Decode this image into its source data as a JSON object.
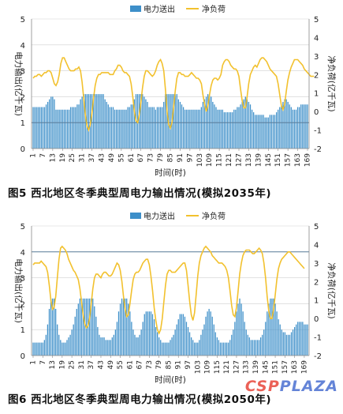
{
  "figures": [
    {
      "caption": "图5  西北地区冬季典型周电力输出情况(模拟2035年)"
    },
    {
      "caption": "图6  西北地区冬季典型周电力输出情况(模拟2050年)"
    }
  ],
  "watermark": {
    "main": "CSP",
    "sub": "PLAZA"
  },
  "colors": {
    "bars": "#3d8fc9",
    "line": "#f2c12e",
    "reference": "#5a7d9a",
    "grid": "#cfcfcf"
  },
  "chart_data": [
    {
      "type": "bar+line",
      "legend": [
        "电力送出",
        "净负荷"
      ],
      "legend_placement": "top-center",
      "xlabel": "时间(时)",
      "ylabel_left": "电力输出(亿千瓦)",
      "ylabel_right": "净负荷(亿千瓦)",
      "ylim_left": [
        0,
        5
      ],
      "ylim_right": [
        -2,
        5
      ],
      "yticks_left": [
        "0",
        "1",
        "2",
        "3",
        "4",
        "5"
      ],
      "yticks_right": [
        "-2",
        "-1",
        "0",
        "1",
        "2",
        "3",
        "4",
        "5"
      ],
      "xticks": [
        "1",
        "7",
        "13",
        "19",
        "25",
        "31",
        "37",
        "43",
        "49",
        "55",
        "61",
        "67",
        "73",
        "79",
        "85",
        "91",
        "97",
        "103",
        "109",
        "115",
        "121",
        "127",
        "133",
        "139",
        "145",
        "151",
        "157",
        "163",
        "169"
      ],
      "reference_line_left": 1.0,
      "bars": [
        1.6,
        1.6,
        1.6,
        1.6,
        1.6,
        1.6,
        1.6,
        1.6,
        1.7,
        1.8,
        1.9,
        2.0,
        2.0,
        1.9,
        1.5,
        1.5,
        1.5,
        1.5,
        1.5,
        1.5,
        1.5,
        1.5,
        1.5,
        1.6,
        1.6,
        1.6,
        1.6,
        1.7,
        1.7,
        1.9,
        2.0,
        2.1,
        2.1,
        2.1,
        2.1,
        2.1,
        2.1,
        2.1,
        2.1,
        2.1,
        2.1,
        2.1,
        2.1,
        2.1,
        1.9,
        1.8,
        1.7,
        1.6,
        1.6,
        1.6,
        1.5,
        1.5,
        1.5,
        1.5,
        1.5,
        1.5,
        1.5,
        1.5,
        1.6,
        1.6,
        1.7,
        1.7,
        1.9,
        2.1,
        2.1,
        2.1,
        2.1,
        2.1,
        2.0,
        1.9,
        1.8,
        1.6,
        1.6,
        1.6,
        1.6,
        1.5,
        1.6,
        1.6,
        1.6,
        1.6,
        1.8,
        2.1,
        2.1,
        2.1,
        2.1,
        2.1,
        2.1,
        2.1,
        2.1,
        1.9,
        1.8,
        1.7,
        1.6,
        1.5,
        1.5,
        1.5,
        1.5,
        1.5,
        1.5,
        1.5,
        1.5,
        1.5,
        1.5,
        1.6,
        1.8,
        1.9,
        2.0,
        2.1,
        2.1,
        2.0,
        1.8,
        1.7,
        1.6,
        1.5,
        1.5,
        1.5,
        1.5,
        1.4,
        1.4,
        1.4,
        1.4,
        1.4,
        1.4,
        1.5,
        1.5,
        1.6,
        1.6,
        1.7,
        1.8,
        1.9,
        2.0,
        1.9,
        1.8,
        1.7,
        1.5,
        1.4,
        1.3,
        1.3,
        1.3,
        1.3,
        1.3,
        1.3,
        1.2,
        1.2,
        1.2,
        1.3,
        1.3,
        1.3,
        1.3,
        1.4,
        1.5,
        1.6,
        1.7,
        1.8,
        1.9,
        1.9,
        1.8,
        1.7,
        1.6,
        1.5,
        1.5,
        1.5,
        1.6,
        1.6,
        1.7,
        1.7,
        1.7,
        1.7,
        1.7
      ],
      "net_load": [
        1.8,
        1.9,
        1.9,
        2.0,
        2.0,
        1.9,
        2.0,
        2.1,
        2.1,
        2.2,
        2.2,
        2.1,
        1.8,
        1.5,
        1.4,
        1.6,
        2.0,
        2.6,
        2.9,
        2.9,
        2.7,
        2.5,
        2.3,
        2.2,
        2.2,
        2.2,
        2.3,
        2.3,
        2.4,
        2.2,
        1.6,
        0.7,
        -0.2,
        -0.8,
        -1.0,
        -0.7,
        -0.1,
        0.7,
        1.4,
        1.8,
        2.0,
        2.0,
        2.1,
        2.1,
        2.1,
        2.1,
        2.1,
        2.0,
        2.0,
        2.0,
        2.2,
        2.3,
        2.5,
        2.5,
        2.4,
        2.2,
        2.1,
        2.1,
        2.0,
        1.9,
        1.5,
        0.8,
        0.0,
        -0.5,
        -0.6,
        -0.2,
        0.5,
        1.3,
        1.9,
        2.2,
        2.2,
        2.1,
        2.0,
        1.9,
        2.0,
        2.2,
        2.5,
        2.7,
        2.8,
        2.6,
        2.2,
        1.2,
        0.0,
        -0.7,
        -0.9,
        -0.6,
        0.2,
        1.1,
        1.8,
        2.1,
        2.1,
        2.0,
        2.0,
        1.9,
        1.9,
        1.9,
        2.0,
        2.1,
        2.0,
        1.9,
        1.8,
        1.8,
        1.7,
        1.5,
        0.9,
        0.4,
        0.0,
        0.3,
        0.9,
        1.4,
        1.7,
        1.8,
        1.8,
        1.7,
        1.8,
        2.0,
        2.5,
        2.7,
        2.8,
        2.8,
        2.7,
        2.5,
        2.4,
        2.3,
        2.3,
        2.2,
        1.9,
        1.2,
        0.6,
        0.2,
        0.2,
        0.8,
        1.5,
        2.0,
        2.2,
        2.4,
        2.5,
        2.4,
        2.6,
        2.8,
        2.9,
        2.9,
        2.8,
        2.7,
        2.5,
        2.3,
        2.2,
        2.1,
        2.0,
        1.9,
        1.5,
        0.9,
        0.3,
        0.1,
        0.4,
        1.1,
        1.7,
        2.1,
        2.4,
        2.6,
        2.8,
        2.8,
        2.8,
        2.7,
        2.6,
        2.5,
        2.3,
        2.2,
        2.1,
        2.0,
        1.9,
        1.9,
        1.9
      ]
    },
    {
      "type": "bar+line",
      "legend": [
        "电力送出",
        "净负荷"
      ],
      "legend_placement": "top-center",
      "xlabel": "时间(时)",
      "ylabel_left": "电力输出(亿千瓦)",
      "ylabel_right": "净负荷(亿千瓦)",
      "ylim_left": [
        0,
        5
      ],
      "ylim_right": [
        -2,
        5
      ],
      "yticks_left": [
        "0",
        "1",
        "2",
        "3",
        "4",
        "5"
      ],
      "yticks_right": [
        "-2",
        "-1",
        "0",
        "1",
        "2",
        "3",
        "4",
        "5"
      ],
      "xticks": [
        "1",
        "7",
        "13",
        "19",
        "25",
        "31",
        "37",
        "43",
        "49",
        "55",
        "61",
        "67",
        "73",
        "79",
        "85",
        "91",
        "97",
        "103",
        "109",
        "115",
        "121",
        "127",
        "133",
        "139",
        "145",
        "151",
        "157",
        "163",
        "169"
      ],
      "reference_line_left": 4.0,
      "bars": [
        0.5,
        0.5,
        0.5,
        0.5,
        0.5,
        0.5,
        0.5,
        0.6,
        0.8,
        1.2,
        1.8,
        2.2,
        2.2,
        2.2,
        1.8,
        1.2,
        0.8,
        0.6,
        0.5,
        0.5,
        0.5,
        0.6,
        0.7,
        0.8,
        1.0,
        1.2,
        1.5,
        1.8,
        2.0,
        2.2,
        2.2,
        2.2,
        2.2,
        2.2,
        2.2,
        2.2,
        2.2,
        2.2,
        1.9,
        1.5,
        1.1,
        0.8,
        0.7,
        0.7,
        0.7,
        0.6,
        0.6,
        0.6,
        0.6,
        0.7,
        0.8,
        1.0,
        1.3,
        1.7,
        2.0,
        2.2,
        2.2,
        2.2,
        2.2,
        2.0,
        1.7,
        1.3,
        1.0,
        0.8,
        0.7,
        0.7,
        0.8,
        1.0,
        1.3,
        1.6,
        1.7,
        1.7,
        1.7,
        1.7,
        1.6,
        1.4,
        1.1,
        0.9,
        0.7,
        0.6,
        0.5,
        0.5,
        0.5,
        0.5,
        0.5,
        0.6,
        0.7,
        0.8,
        1.0,
        1.2,
        1.4,
        1.6,
        1.6,
        1.6,
        1.5,
        1.3,
        1.1,
        0.9,
        0.7,
        0.6,
        0.5,
        0.5,
        0.5,
        0.6,
        0.8,
        1.0,
        1.2,
        1.5,
        1.7,
        1.8,
        1.7,
        1.5,
        1.2,
        0.9,
        0.7,
        0.6,
        0.5,
        0.5,
        0.5,
        0.5,
        0.5,
        0.5,
        0.6,
        0.8,
        1.0,
        1.3,
        1.7,
        2.0,
        2.2,
        2.0,
        1.7,
        1.3,
        1.0,
        0.8,
        0.7,
        0.6,
        0.6,
        0.6,
        0.6,
        0.6,
        0.6,
        0.7,
        0.8,
        1.0,
        1.3,
        1.7,
        2.0,
        2.2,
        2.2,
        2.2,
        2.0,
        1.7,
        1.4,
        1.2,
        1.0,
        0.9,
        0.9,
        0.8,
        0.8,
        0.8,
        0.9,
        1.0,
        1.1,
        1.2,
        1.3,
        1.3,
        1.3,
        1.3,
        1.2,
        1.2,
        1.2
      ],
      "net_load": [
        2.9,
        3.0,
        3.0,
        3.0,
        3.0,
        3.1,
        3.0,
        2.9,
        2.8,
        2.5,
        1.8,
        1.0,
        0.5,
        0.6,
        1.2,
        2.2,
        3.2,
        3.8,
        3.9,
        3.8,
        3.7,
        3.5,
        3.2,
        3.0,
        2.8,
        2.6,
        2.5,
        2.3,
        2.1,
        1.6,
        0.9,
        0.2,
        -0.3,
        -0.5,
        -0.4,
        0.0,
        0.8,
        1.6,
        2.2,
        2.4,
        2.4,
        2.3,
        2.2,
        2.4,
        2.5,
        2.5,
        2.4,
        2.3,
        2.3,
        2.4,
        2.6,
        2.8,
        3.0,
        2.9,
        2.6,
        2.0,
        1.2,
        0.5,
        0.1,
        0.2,
        0.8,
        1.5,
        2.1,
        2.4,
        2.5,
        2.5,
        2.6,
        2.8,
        3.0,
        3.1,
        3.2,
        3.2,
        2.9,
        2.3,
        1.5,
        0.6,
        -0.1,
        -0.6,
        -0.8,
        -0.6,
        0.0,
        0.9,
        1.8,
        2.4,
        2.6,
        2.6,
        2.5,
        2.5,
        2.5,
        2.6,
        2.7,
        2.8,
        2.9,
        3.0,
        3.0,
        2.6,
        1.8,
        0.9,
        0.2,
        -0.1,
        0.3,
        1.3,
        2.3,
        3.0,
        3.4,
        3.6,
        3.8,
        3.9,
        3.8,
        3.7,
        3.6,
        3.4,
        3.3,
        3.2,
        3.1,
        3.0,
        3.0,
        3.0,
        2.9,
        2.8,
        2.6,
        2.2,
        1.5,
        0.7,
        0.2,
        0.1,
        0.6,
        1.5,
        2.4,
        3.0,
        3.4,
        3.6,
        3.7,
        3.7,
        3.7,
        3.6,
        3.5,
        3.5,
        3.6,
        3.7,
        3.8,
        3.7,
        3.5,
        3.0,
        2.2,
        1.2,
        0.4,
        0.0,
        0.0,
        0.5,
        1.3,
        2.1,
        2.7,
        3.0,
        3.2,
        3.3,
        3.4,
        3.5,
        3.6,
        3.6,
        3.5,
        3.4,
        3.3,
        3.2,
        3.1,
        3.0,
        2.9,
        2.8,
        2.7
      ]
    }
  ]
}
